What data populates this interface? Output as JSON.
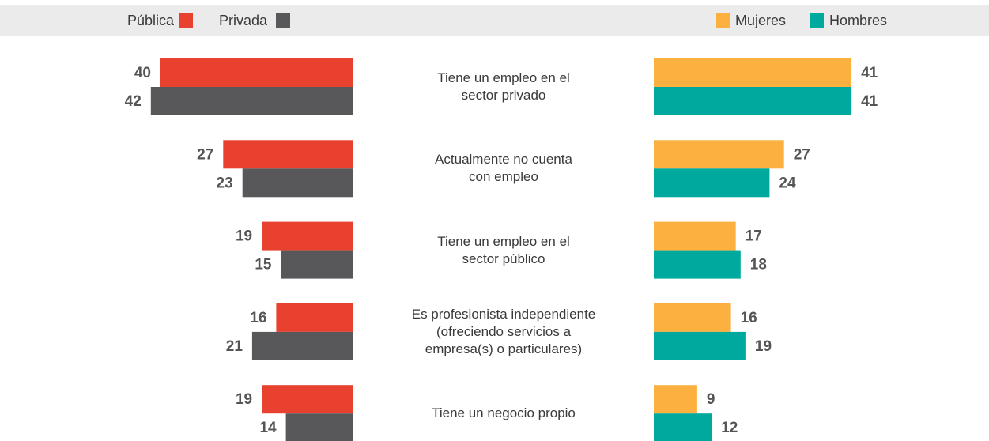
{
  "chart_data": [
    {
      "type": "bar",
      "orientation": "horizontal",
      "direction": "left",
      "categories": [
        "Tiene un empleo en el\nsector privado",
        "Actualmente no cuenta\ncon empleo",
        "Tiene un empleo en el\nsector público",
        "Es profesionista independiente\n(ofreciendo servicios a\nempresa(s) o particulares)",
        "Tiene un negocio propio"
      ],
      "series": [
        {
          "name": "Pública",
          "color": "#e8412f",
          "values": [
            40,
            27,
            19,
            16,
            19
          ]
        },
        {
          "name": "Privada",
          "color": "#58585a",
          "values": [
            42,
            23,
            15,
            21,
            14
          ]
        }
      ]
    },
    {
      "type": "bar",
      "orientation": "horizontal",
      "direction": "right",
      "series": [
        {
          "name": "Mujeres",
          "color": "#fbb040",
          "values": [
            41,
            27,
            17,
            16,
            9
          ]
        },
        {
          "name": "Hombres",
          "color": "#00a99d",
          "values": [
            41,
            24,
            18,
            19,
            12
          ]
        }
      ]
    }
  ]
}
